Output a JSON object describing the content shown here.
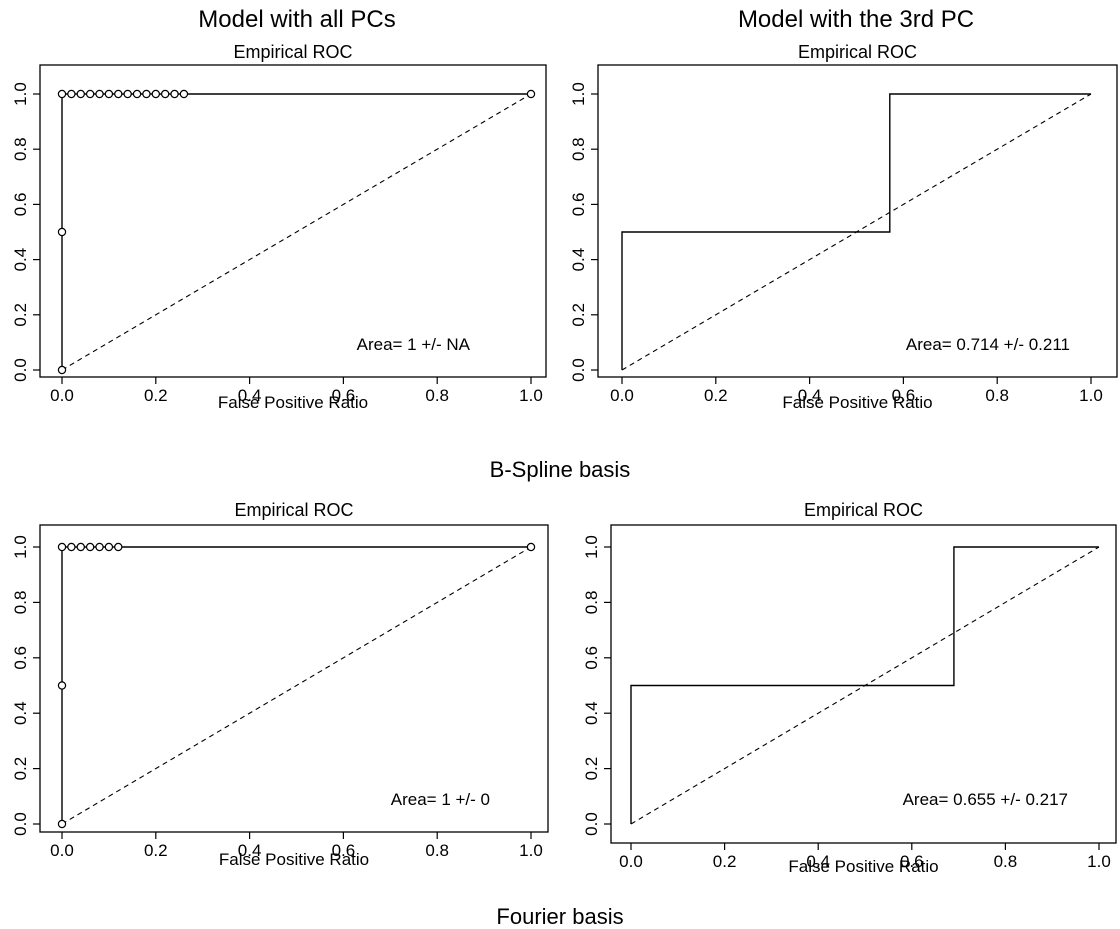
{
  "header": {
    "col_left_title": "Model with all PCs",
    "col_right_title": "Model with the 3rd PC"
  },
  "sections": {
    "bspline_label": "B-Spline basis",
    "fourier_label": "Fourier basis"
  },
  "chart_data": [
    {
      "type": "line",
      "title": "Empirical ROC",
      "xlabel": "False Positive Ratio",
      "ylabel": "",
      "xlim": [
        0,
        1
      ],
      "ylim": [
        0,
        1
      ],
      "xticks": [
        "0.0",
        "0.2",
        "0.4",
        "0.6",
        "0.8",
        "1.0"
      ],
      "yticks": [
        "0.0",
        "0.2",
        "0.4",
        "0.6",
        "0.8",
        "1.0"
      ],
      "grid": false,
      "series": [
        {
          "x": [
            0,
            0,
            0,
            0.02,
            0.04,
            0.06,
            0.08,
            0.1,
            0.12,
            0.14,
            0.16,
            0.18,
            0.2,
            0.22,
            0.24,
            0.26,
            1.0
          ],
          "y": [
            0,
            0.5,
            1,
            1,
            1,
            1,
            1,
            1,
            1,
            1,
            1,
            1,
            1,
            1,
            1,
            1,
            1
          ],
          "markers": true,
          "line_end": [
            [
              0.3,
              1
            ],
            [
              1,
              1
            ]
          ]
        }
      ],
      "annotation": "Area= 1 +/- NA"
    },
    {
      "type": "line",
      "title": "Empirical ROC",
      "xlabel": "False Positive Ratio",
      "ylabel": "",
      "xlim": [
        0,
        1
      ],
      "ylim": [
        0,
        1
      ],
      "xticks": [
        "0.0",
        "0.2",
        "0.4",
        "0.6",
        "0.8",
        "1.0"
      ],
      "yticks": [
        "0.0",
        "0.2",
        "0.4",
        "0.6",
        "0.8",
        "1.0"
      ],
      "grid": false,
      "series": [
        {
          "x": [
            0,
            0,
            0.571,
            0.571,
            1.0
          ],
          "y": [
            0,
            0.5,
            0.5,
            1,
            1
          ],
          "markers": false
        }
      ],
      "annotation": "Area= 0.714 +/- 0.211"
    },
    {
      "type": "line",
      "title": "Empirical ROC",
      "xlabel": "False Positive Ratio",
      "ylabel": "",
      "xlim": [
        0,
        1
      ],
      "ylim": [
        0,
        1
      ],
      "xticks": [
        "0.0",
        "0.2",
        "0.4",
        "0.6",
        "0.8",
        "1.0"
      ],
      "yticks": [
        "0.0",
        "0.2",
        "0.4",
        "0.6",
        "0.8",
        "1.0"
      ],
      "grid": false,
      "series": [
        {
          "x": [
            0,
            0,
            0,
            0.02,
            0.04,
            0.06,
            0.08,
            0.1,
            0.12,
            1.0
          ],
          "y": [
            0,
            0.5,
            1,
            1,
            1,
            1,
            1,
            1,
            1,
            1
          ],
          "markers": true
        }
      ],
      "annotation": "Area= 1 +/- 0"
    },
    {
      "type": "line",
      "title": "Empirical ROC",
      "xlabel": "False Positive Ratio",
      "ylabel": "",
      "xlim": [
        0,
        1
      ],
      "ylim": [
        0,
        1
      ],
      "xticks": [
        "0.0",
        "0.2",
        "0.4",
        "0.6",
        "0.8",
        "1.0"
      ],
      "yticks": [
        "0.0",
        "0.2",
        "0.4",
        "0.6",
        "0.8",
        "1.0"
      ],
      "grid": false,
      "series": [
        {
          "x": [
            0,
            0,
            0.69,
            0.69,
            1.0
          ],
          "y": [
            0,
            0.5,
            0.5,
            1,
            1
          ],
          "markers": false
        }
      ],
      "annotation": "Area= 0.655 +/- 0.217"
    }
  ]
}
